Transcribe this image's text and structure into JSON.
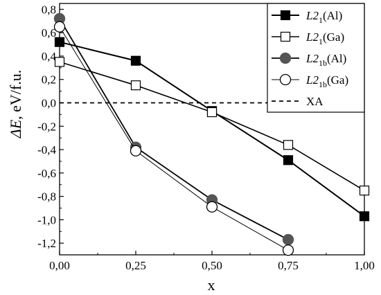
{
  "chart_data": {
    "type": "line",
    "xlabel": "x",
    "ylabel": "ΔE, eV/f.u.",
    "xlim": [
      0,
      1
    ],
    "ylim": [
      -1.3,
      0.85
    ],
    "x_ticks": [
      {
        "value": 0,
        "label": "0,00"
      },
      {
        "value": 0.25,
        "label": "0,25"
      },
      {
        "value": 0.5,
        "label": "0,50"
      },
      {
        "value": 0.75,
        "label": "0,75"
      },
      {
        "value": 1,
        "label": "1,00"
      }
    ],
    "y_ticks": [
      {
        "value": 0.8,
        "label": "0,8"
      },
      {
        "value": 0.6,
        "label": "0,6"
      },
      {
        "value": 0.4,
        "label": "0,4"
      },
      {
        "value": 0.2,
        "label": "0,2"
      },
      {
        "value": 0.0,
        "label": "0,0"
      },
      {
        "value": -0.2,
        "label": "-0,2"
      },
      {
        "value": -0.4,
        "label": "-0,4"
      },
      {
        "value": -0.6,
        "label": "-0,6"
      },
      {
        "value": -0.8,
        "label": "-0,8"
      },
      {
        "value": -1.0,
        "label": "-1,0"
      },
      {
        "value": -1.2,
        "label": "-1,2"
      }
    ],
    "grid": false,
    "legend_position": "top-right",
    "series": [
      {
        "name_base": "L2",
        "name_sub": "1",
        "name_suffix": "(Al)",
        "marker": "square-filled",
        "line_width": 2,
        "x": [
          0,
          0.25,
          0.5,
          0.75,
          1.0
        ],
        "y": [
          0.52,
          0.36,
          -0.07,
          -0.49,
          -0.97
        ]
      },
      {
        "name_base": "L2",
        "name_sub": "1",
        "name_suffix": "(Ga)",
        "marker": "square-open",
        "line_width": 1.6,
        "x": [
          0,
          0.25,
          0.5,
          0.75,
          1.0
        ],
        "y": [
          0.35,
          0.15,
          -0.08,
          -0.36,
          -0.75
        ]
      },
      {
        "name_base": "L2",
        "name_sub": "1b",
        "name_suffix": "(Al)",
        "marker": "circle-filled",
        "line_width": 1.8,
        "x": [
          0,
          0.25,
          0.5,
          0.75
        ],
        "y": [
          0.72,
          -0.38,
          -0.83,
          -1.17
        ]
      },
      {
        "name_base": "L2",
        "name_sub": "1b",
        "name_suffix": "(Ga)",
        "marker": "circle-open",
        "line_width": 1,
        "x": [
          0,
          0.25,
          0.5,
          0.75
        ],
        "y": [
          0.65,
          -0.41,
          -0.89,
          -1.26
        ]
      }
    ],
    "reference_line": {
      "name": "XA",
      "y": 0.0,
      "style": "dashed"
    }
  }
}
